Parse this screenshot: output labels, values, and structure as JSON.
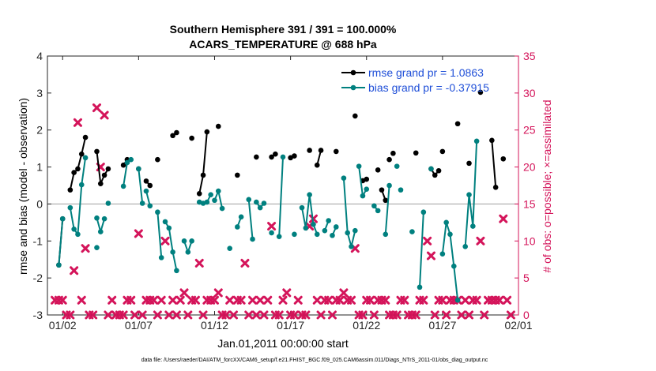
{
  "chart_data": {
    "type": "line",
    "title_line1": "Southern Hemisphere 391 / 391 = 100.000%",
    "title_line2": "ACARS_TEMPERATURE @ 688 hPa",
    "xlabel": "Jan.01,2011 00:00:00 start",
    "ylabel_left": "rmse and bias (model - observation)",
    "ylabel_right": "# of obs: o=possible; ×=assimilated",
    "footer": "data file: /Users/raeder/DAI/ATM_forcXX/CAM6_setup/f.e21.FHIST_BGC.f09_025.CAM6assim.011/Diags_NTrS_2011-01/obs_diag_output.nc",
    "xlim": [
      0.5,
      31.5
    ],
    "ylim_left": [
      -3,
      4
    ],
    "ylim_right": [
      0,
      35
    ],
    "x_ticks": [
      1.5,
      6.5,
      11.5,
      16.5,
      21.5,
      26.5,
      31.5
    ],
    "x_tick_labels": [
      "01/02",
      "01/07",
      "01/12",
      "01/17",
      "01/22",
      "01/27",
      "02/01"
    ],
    "y_ticks_left": [
      "-3",
      "-2",
      "-1",
      "0",
      "1",
      "2",
      "3",
      "4"
    ],
    "y_ticks_right": [
      "0",
      "5",
      "10",
      "15",
      "20",
      "25",
      "30",
      "35"
    ],
    "zero_line": true,
    "colors": {
      "rmse": "#000000",
      "bias": "#00807f",
      "obs": "#d4145a",
      "zero": "#a0a0a0",
      "legend_text": "#1f4fd8"
    },
    "legend": [
      {
        "name": "rmse grand pr = 1.0863"
      },
      {
        "name": "bias grand pr = -0.37915"
      }
    ],
    "series": [
      {
        "name": "rmse",
        "segments": [
          [
            [
              1.25,
              -1.65
            ],
            [
              1.5,
              -0.4
            ]
          ],
          [
            [
              2.0,
              0.38
            ],
            [
              2.25,
              0.85
            ],
            [
              2.5,
              0.95
            ],
            [
              2.75,
              1.35
            ],
            [
              3.0,
              1.8
            ]
          ],
          [
            [
              3.75,
              1.42
            ],
            [
              4.0,
              0.55
            ],
            [
              4.25,
              0.78
            ],
            [
              4.5,
              0.95
            ]
          ],
          [
            [
              5.5,
              1.05
            ],
            [
              5.75,
              1.2
            ]
          ],
          [
            [
              6.5,
              0.95
            ]
          ],
          [
            [
              7.0,
              0.62
            ],
            [
              7.25,
              0.5
            ]
          ],
          [
            [
              7.75,
              1.2
            ]
          ],
          [
            [
              8.75,
              1.85
            ],
            [
              9.0,
              1.93
            ]
          ],
          [
            [
              10.0,
              1.78
            ]
          ],
          [
            [
              10.5,
              0.28
            ],
            [
              10.75,
              0.78
            ],
            [
              11.0,
              1.95
            ]
          ],
          [
            [
              11.75,
              2.1
            ]
          ],
          [
            [
              13.0,
              0.78
            ]
          ],
          [
            [
              14.25,
              1.27
            ]
          ],
          [
            [
              15.25,
              1.27
            ],
            [
              15.5,
              1.35
            ]
          ],
          [
            [
              16.5,
              1.25
            ],
            [
              16.75,
              1.3
            ]
          ],
          [
            [
              17.75,
              1.45
            ]
          ],
          [
            [
              18.25,
              1.05
            ],
            [
              18.5,
              1.45
            ]
          ],
          [
            [
              19.5,
              1.42
            ]
          ],
          [
            [
              20.75,
              2.38
            ]
          ],
          [
            [
              21.25,
              0.63
            ],
            [
              21.5,
              0.67
            ]
          ],
          [
            [
              22.25,
              0.92
            ]
          ],
          [
            [
              22.5,
              0.38
            ],
            [
              22.75,
              0.1
            ]
          ],
          [
            [
              23.0,
              1.2
            ]
          ],
          [
            [
              23.25,
              1.37
            ]
          ],
          [
            [
              24.75,
              1.38
            ]
          ],
          [
            [
              25.75,
              0.95
            ],
            [
              26.0,
              0.78
            ],
            [
              26.25,
              0.9
            ]
          ],
          [
            [
              26.5,
              1.42
            ]
          ],
          [
            [
              27.5,
              2.17
            ]
          ],
          [
            [
              28.25,
              1.1
            ]
          ],
          [
            [
              29.0,
              3.02
            ]
          ],
          [
            [
              29.75,
              1.72
            ],
            [
              30.0,
              0.45
            ]
          ],
          [
            [
              30.5,
              1.22
            ]
          ]
        ]
      },
      {
        "name": "bias",
        "segments": [
          [
            [
              1.25,
              -1.65
            ],
            [
              1.5,
              -0.4
            ]
          ],
          [
            [
              2.0,
              -0.1
            ],
            [
              2.25,
              -0.68
            ],
            [
              2.5,
              -0.82
            ],
            [
              2.75,
              0.52
            ],
            [
              3.0,
              1.25
            ]
          ],
          [
            [
              3.75,
              -0.38
            ],
            [
              4.0,
              -0.75
            ],
            [
              4.25,
              -0.4
            ]
          ],
          [
            [
              3.75,
              -1.18
            ]
          ],
          [
            [
              4.5,
              0.02
            ]
          ],
          [
            [
              5.5,
              0.48
            ],
            [
              5.75,
              1.12
            ],
            [
              6.0,
              1.2
            ]
          ],
          [
            [
              6.5,
              0.95
            ],
            [
              6.75,
              0.02
            ]
          ],
          [
            [
              7.0,
              0.35
            ],
            [
              7.25,
              -0.05
            ]
          ],
          [
            [
              7.75,
              -0.22
            ],
            [
              8.0,
              -1.45
            ]
          ],
          [
            [
              8.25,
              -0.48
            ],
            [
              8.5,
              -0.65
            ],
            [
              8.75,
              -1.3
            ],
            [
              9.0,
              -1.8
            ]
          ],
          [
            [
              9.5,
              -1.0
            ],
            [
              9.75,
              -1.3
            ],
            [
              10.0,
              -1.0
            ]
          ],
          [
            [
              10.5,
              0.05
            ],
            [
              10.75,
              0.02
            ],
            [
              11.0,
              0.05
            ],
            [
              11.25,
              0.25
            ]
          ],
          [
            [
              11.5,
              0.1
            ],
            [
              11.75,
              0.35
            ],
            [
              12.0,
              -0.12
            ]
          ],
          [
            [
              12.5,
              -1.2
            ]
          ],
          [
            [
              13.0,
              -0.62
            ],
            [
              13.25,
              -0.35
            ]
          ],
          [
            [
              13.75,
              0.12
            ],
            [
              14.0,
              -0.95
            ]
          ],
          [
            [
              14.25,
              0.05
            ],
            [
              14.5,
              -0.1
            ],
            [
              14.75,
              0.02
            ]
          ],
          [
            [
              15.25,
              -0.78
            ]
          ],
          [
            [
              15.75,
              -0.88
            ],
            [
              16.0,
              1.27
            ]
          ],
          [
            [
              16.75,
              -0.82
            ]
          ],
          [
            [
              17.25,
              -0.1
            ],
            [
              17.5,
              -0.65
            ],
            [
              17.75,
              0.25
            ],
            [
              18.0,
              -0.55
            ],
            [
              18.25,
              -0.82
            ]
          ],
          [
            [
              18.75,
              -0.72
            ],
            [
              19.0,
              -0.45
            ]
          ],
          [
            [
              19.25,
              -0.85
            ],
            [
              19.5,
              -0.62
            ]
          ],
          [
            [
              20.0,
              0.7
            ],
            [
              20.25,
              -0.78
            ],
            [
              20.5,
              -1.15
            ],
            [
              20.75,
              -0.72
            ]
          ],
          [
            [
              21.0,
              1.02
            ],
            [
              21.25,
              0.22
            ],
            [
              21.5,
              0.4
            ]
          ],
          [
            [
              22.0,
              -0.05
            ],
            [
              22.25,
              -0.18
            ]
          ],
          [
            [
              22.75,
              -0.82
            ],
            [
              23.0,
              0.5
            ]
          ],
          [
            [
              23.5,
              1.02
            ]
          ],
          [
            [
              23.75,
              0.38
            ]
          ],
          [
            [
              24.5,
              -0.75
            ]
          ],
          [
            [
              25.0,
              -2.25
            ],
            [
              25.25,
              -0.22
            ]
          ],
          [
            [
              25.75,
              0.95
            ]
          ],
          [
            [
              26.5,
              -1.35
            ],
            [
              26.75,
              -0.5
            ],
            [
              27.0,
              -0.82
            ],
            [
              27.25,
              -1.68
            ],
            [
              27.5,
              -2.6
            ]
          ],
          [
            [
              28.0,
              -1.15
            ],
            [
              28.25,
              0.25
            ],
            [
              28.5,
              -0.6
            ],
            [
              28.75,
              1.7
            ]
          ]
        ]
      },
      {
        "name": "obs_count",
        "points": [
          [
            1.0,
            2
          ],
          [
            1.25,
            2
          ],
          [
            1.5,
            2
          ],
          [
            1.75,
            0
          ],
          [
            2.0,
            0
          ],
          [
            2.25,
            6
          ],
          [
            2.5,
            26
          ],
          [
            2.75,
            2
          ],
          [
            3.0,
            9
          ],
          [
            3.25,
            0
          ],
          [
            3.5,
            0
          ],
          [
            3.75,
            28
          ],
          [
            4.0,
            20
          ],
          [
            4.25,
            27
          ],
          [
            4.5,
            0
          ],
          [
            4.75,
            2
          ],
          [
            5.0,
            0
          ],
          [
            5.25,
            0
          ],
          [
            5.5,
            0
          ],
          [
            5.75,
            2
          ],
          [
            6.0,
            2
          ],
          [
            6.25,
            0
          ],
          [
            6.5,
            11
          ],
          [
            6.75,
            0
          ],
          [
            7.0,
            2
          ],
          [
            7.25,
            2
          ],
          [
            7.5,
            2
          ],
          [
            7.75,
            0
          ],
          [
            8.0,
            2
          ],
          [
            8.25,
            10
          ],
          [
            8.5,
            0
          ],
          [
            8.75,
            2
          ],
          [
            9.0,
            0
          ],
          [
            9.25,
            2
          ],
          [
            9.5,
            3
          ],
          [
            9.75,
            0
          ],
          [
            10.0,
            2
          ],
          [
            10.25,
            2
          ],
          [
            10.5,
            7
          ],
          [
            10.75,
            0
          ],
          [
            11.0,
            2
          ],
          [
            11.25,
            2
          ],
          [
            11.5,
            2
          ],
          [
            11.75,
            3
          ],
          [
            12.0,
            0
          ],
          [
            12.25,
            0
          ],
          [
            12.5,
            2
          ],
          [
            12.75,
            0
          ],
          [
            13.0,
            2
          ],
          [
            13.25,
            2
          ],
          [
            13.5,
            7
          ],
          [
            13.75,
            0
          ],
          [
            14.0,
            2
          ],
          [
            14.25,
            0
          ],
          [
            14.5,
            2
          ],
          [
            14.75,
            0
          ],
          [
            15.0,
            2
          ],
          [
            15.25,
            12
          ],
          [
            15.5,
            0
          ],
          [
            15.75,
            0
          ],
          [
            16.0,
            2
          ],
          [
            16.25,
            3
          ],
          [
            16.5,
            0
          ],
          [
            16.75,
            0
          ],
          [
            17.0,
            2
          ],
          [
            17.25,
            0
          ],
          [
            17.5,
            0
          ],
          [
            17.75,
            12
          ],
          [
            18.0,
            13
          ],
          [
            18.25,
            2
          ],
          [
            18.5,
            0
          ],
          [
            18.75,
            2
          ],
          [
            19.0,
            2
          ],
          [
            19.25,
            0
          ],
          [
            19.5,
            2
          ],
          [
            19.75,
            2
          ],
          [
            20.0,
            3
          ],
          [
            20.25,
            2
          ],
          [
            20.5,
            2
          ],
          [
            20.75,
            9
          ],
          [
            21.0,
            0
          ],
          [
            21.25,
            0
          ],
          [
            21.5,
            2
          ],
          [
            21.75,
            2
          ],
          [
            22.0,
            0
          ],
          [
            22.25,
            2
          ],
          [
            22.5,
            2
          ],
          [
            22.75,
            2
          ],
          [
            23.0,
            0
          ],
          [
            23.25,
            0
          ],
          [
            23.5,
            0
          ],
          [
            23.75,
            2
          ],
          [
            24.0,
            2
          ],
          [
            24.25,
            0
          ],
          [
            24.5,
            0
          ],
          [
            24.75,
            0
          ],
          [
            25.0,
            2
          ],
          [
            25.25,
            2
          ],
          [
            25.5,
            10
          ],
          [
            25.75,
            8
          ],
          [
            26.0,
            0
          ],
          [
            26.25,
            2
          ],
          [
            26.5,
            2
          ],
          [
            26.75,
            0
          ],
          [
            27.0,
            2
          ],
          [
            27.25,
            2
          ],
          [
            27.5,
            2
          ],
          [
            27.75,
            0
          ],
          [
            28.0,
            2
          ],
          [
            28.25,
            0
          ],
          [
            28.5,
            2
          ],
          [
            28.75,
            2
          ],
          [
            29.0,
            10
          ],
          [
            29.25,
            0
          ],
          [
            29.5,
            2
          ],
          [
            29.75,
            2
          ],
          [
            30.0,
            2
          ],
          [
            30.25,
            2
          ],
          [
            30.5,
            13
          ],
          [
            30.75,
            2
          ],
          [
            31.0,
            0
          ]
        ]
      }
    ]
  }
}
